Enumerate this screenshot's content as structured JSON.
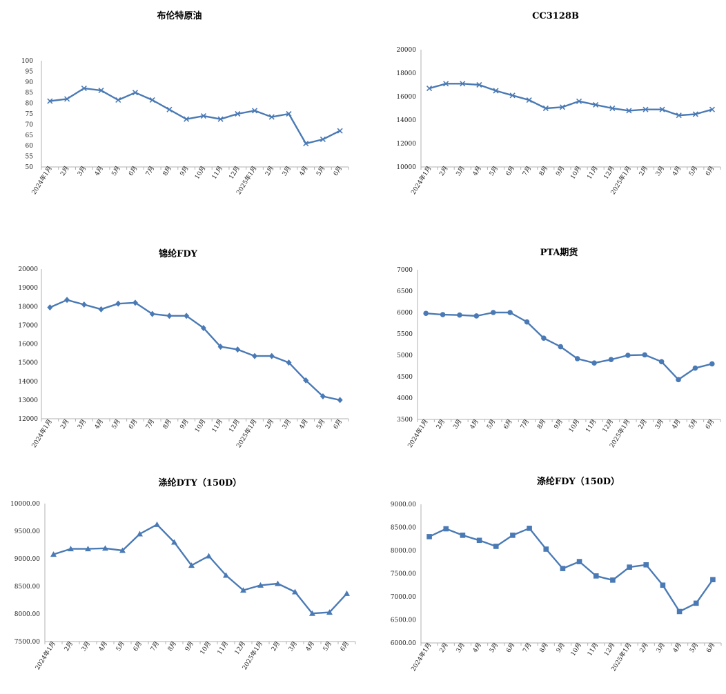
{
  "xcategories": [
    "2024年1月",
    "2月",
    "3月",
    "4月",
    "5月",
    "6月",
    "7月",
    "8月",
    "9月",
    "10月",
    "11月",
    "12月",
    "2025年1月",
    "2月",
    "3月",
    "4月",
    "5月",
    "6月"
  ],
  "colors": {
    "series": "#4a7ab5",
    "axis": "#b0b0b0"
  },
  "chart_data": [
    {
      "type": "line",
      "title": "布伦特原油",
      "marker": "x",
      "yticks": [
        "100",
        "95",
        "90",
        "85",
        "80",
        "75",
        "70",
        "65",
        "60",
        "55",
        "50"
      ],
      "ylim": [
        50,
        100
      ],
      "grid": false,
      "values": [
        81,
        82,
        87,
        86,
        81.5,
        85,
        81.5,
        77,
        72.5,
        74,
        72.5,
        75,
        76.5,
        73.5,
        75,
        61,
        63,
        67
      ]
    },
    {
      "type": "line",
      "title": "CC3128B",
      "marker": "x",
      "yticks": [
        "20000",
        "18000",
        "16000",
        "14000",
        "12000",
        "10000"
      ],
      "ylim": [
        10000,
        20000
      ],
      "grid": false,
      "values": [
        16700,
        17100,
        17100,
        17000,
        16500,
        16100,
        15700,
        15000,
        15100,
        15600,
        15300,
        15000,
        14800,
        14900,
        14900,
        14400,
        14500,
        14900
      ]
    },
    {
      "type": "line",
      "title": "锦纶FDY",
      "marker": "diamond",
      "yticks": [
        "20000",
        "19000",
        "18000",
        "17000",
        "16000",
        "15000",
        "14000",
        "13000",
        "12000"
      ],
      "ylim": [
        12000,
        20000
      ],
      "grid": false,
      "values": [
        17950,
        18350,
        18100,
        17850,
        18150,
        18200,
        17600,
        17500,
        17500,
        16850,
        15850,
        15700,
        15350,
        15350,
        15000,
        14050,
        13200,
        13000
      ]
    },
    {
      "type": "line",
      "title": "PTA期货",
      "marker": "circle",
      "yticks": [
        "7000",
        "6500",
        "6000",
        "5500",
        "5000",
        "4500",
        "4000",
        "3500"
      ],
      "ylim": [
        3500,
        7000
      ],
      "grid": false,
      "values": [
        5980,
        5950,
        5940,
        5920,
        6000,
        6000,
        5780,
        5400,
        5200,
        4920,
        4820,
        4900,
        5000,
        5010,
        4850,
        4430,
        4700,
        4800
      ]
    },
    {
      "type": "line",
      "title": "涤纶DTY（150D）",
      "marker": "triangle",
      "yticks": [
        "10000.00",
        "9500.00",
        "9000.00",
        "8500.00",
        "8000.00",
        "7500.00"
      ],
      "ylim": [
        7500,
        10000
      ],
      "grid": false,
      "values": [
        9080,
        9180,
        9180,
        9190,
        9150,
        9450,
        9620,
        9300,
        8880,
        9050,
        8700,
        8430,
        8520,
        8550,
        8400,
        8010,
        8030,
        8370
      ]
    },
    {
      "type": "line",
      "title": "涤纶FDY（150D）",
      "marker": "square",
      "yticks": [
        "9000.00",
        "8500.00",
        "8000.00",
        "7500.00",
        "7000.00",
        "6500.00",
        "6000.00"
      ],
      "ylim": [
        6000,
        9000
      ],
      "grid": false,
      "values": [
        8300,
        8470,
        8330,
        8220,
        8090,
        8330,
        8480,
        8030,
        7610,
        7760,
        7450,
        7360,
        7640,
        7690,
        7250,
        6680,
        6860,
        7370
      ]
    }
  ]
}
